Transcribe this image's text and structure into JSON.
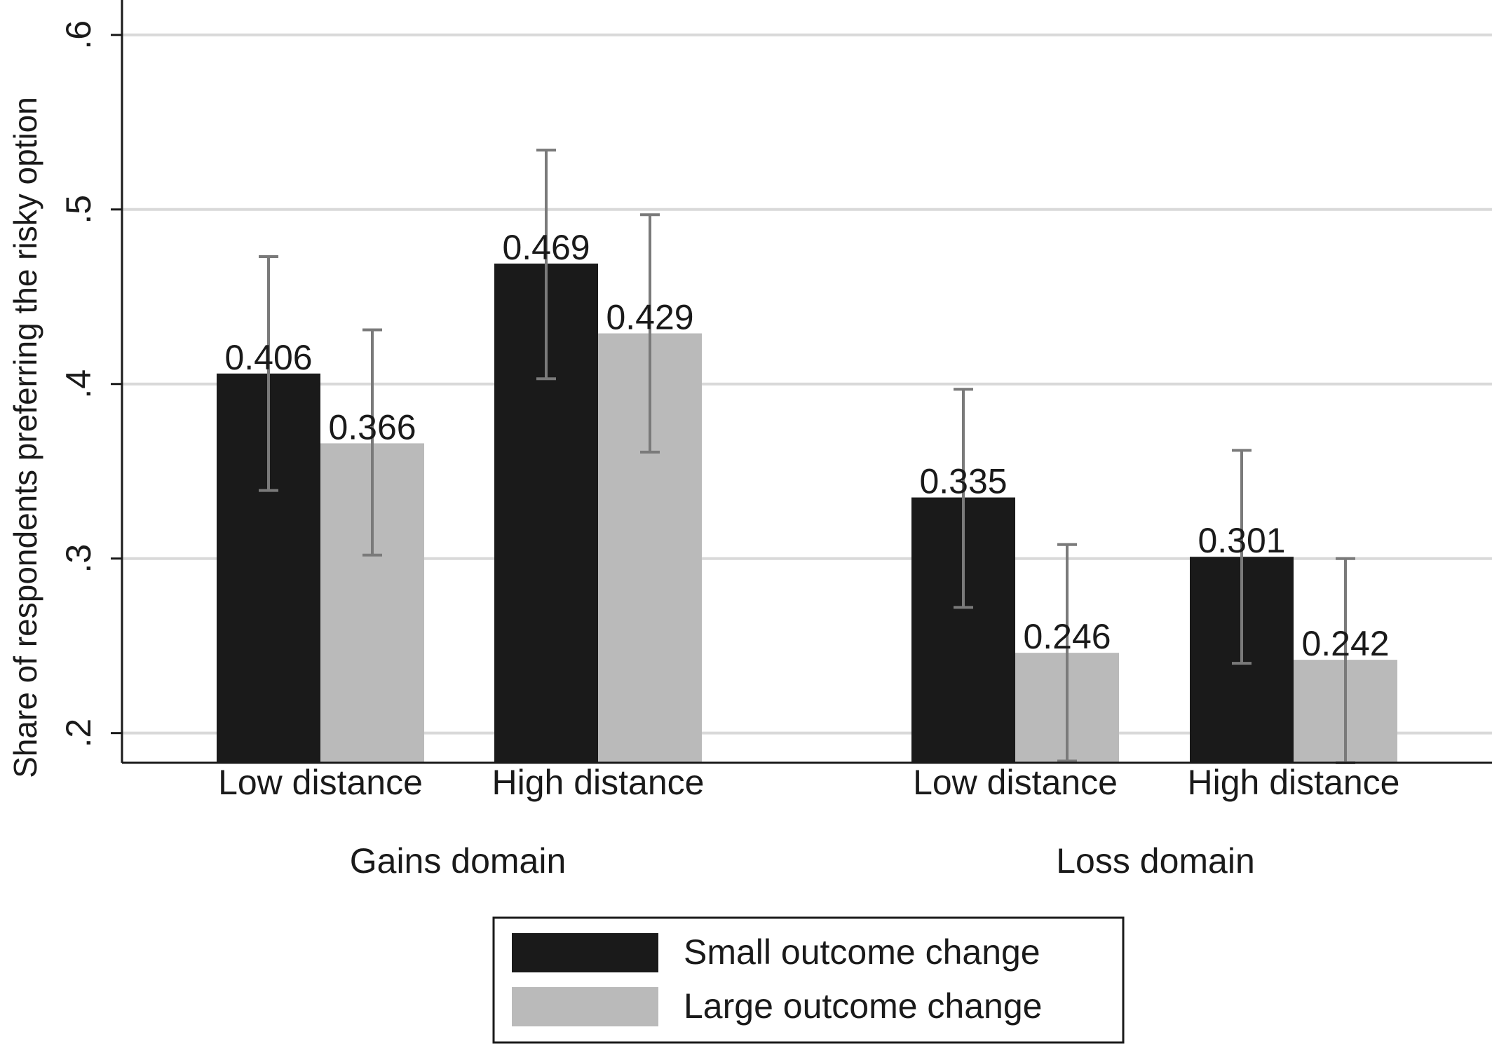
{
  "chart_data": {
    "type": "bar",
    "ylabel": "Share of respondents preferring the risky option",
    "ylim": [
      0.183,
      0.62
    ],
    "yticks": [
      {
        "value": 0.2,
        "label": ".2"
      },
      {
        "value": 0.3,
        "label": ".3"
      },
      {
        "value": 0.4,
        "label": ".4"
      },
      {
        "value": 0.5,
        "label": ".5"
      },
      {
        "value": 0.6,
        "label": ".6"
      }
    ],
    "grid": true,
    "legend_position": "bottom",
    "groups": [
      {
        "label": "Gains domain",
        "categories": [
          {
            "label": "Low distance",
            "values": [
              0.406,
              0.366
            ],
            "value_labels": [
              "0.406",
              "0.366"
            ],
            "ci": [
              [
                0.339,
                0.473
              ],
              [
                0.302,
                0.431
              ]
            ]
          },
          {
            "label": "High distance",
            "values": [
              0.469,
              0.429
            ],
            "value_labels": [
              "0.469",
              "0.429"
            ],
            "ci": [
              [
                0.403,
                0.534
              ],
              [
                0.361,
                0.497
              ]
            ]
          }
        ]
      },
      {
        "label": "Loss domain",
        "categories": [
          {
            "label": "Low distance",
            "values": [
              0.335,
              0.246
            ],
            "value_labels": [
              "0.335",
              "0.246"
            ],
            "ci": [
              [
                0.272,
                0.397
              ],
              [
                0.184,
                0.308
              ]
            ]
          },
          {
            "label": "High distance",
            "values": [
              0.301,
              0.242
            ],
            "value_labels": [
              "0.301",
              "0.242"
            ],
            "ci": [
              [
                0.24,
                0.362
              ],
              [
                0.183,
                0.3
              ]
            ]
          }
        ]
      }
    ],
    "series": [
      {
        "name": "Small outcome change",
        "color": "#1a1a1a"
      },
      {
        "name": "Large outcome change",
        "color": "#bababa"
      }
    ],
    "error_bar_color": "#7a7a7a",
    "grid_color": "#d9d9d9"
  }
}
